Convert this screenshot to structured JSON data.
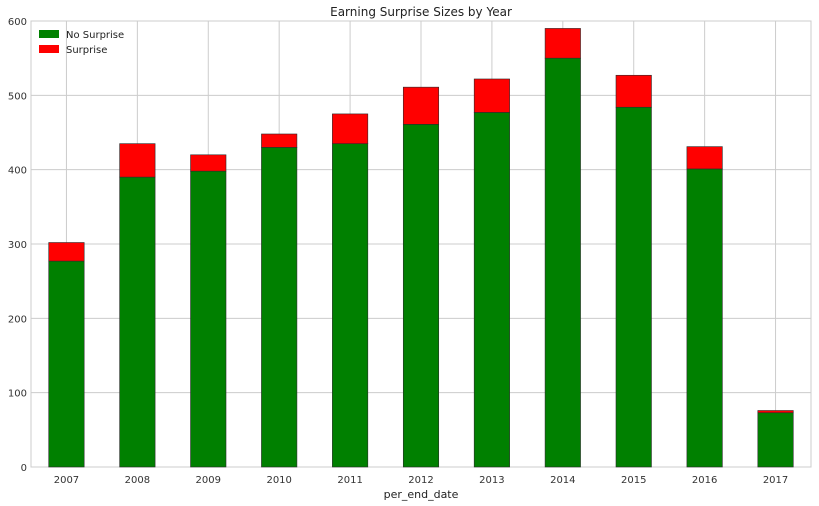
{
  "chart_data": {
    "type": "bar",
    "stacked": true,
    "title": "Earning Surprise Sizes by Year",
    "xlabel": "per_end_date",
    "ylabel": "",
    "ylim": [
      0,
      600
    ],
    "yticks": [
      0,
      100,
      200,
      300,
      400,
      500,
      600
    ],
    "grid": true,
    "legend_position": "top-left",
    "categories": [
      "2007",
      "2008",
      "2009",
      "2010",
      "2011",
      "2012",
      "2013",
      "2014",
      "2015",
      "2016",
      "2017"
    ],
    "series": [
      {
        "name": "No Surprise",
        "color": "#008000",
        "values": [
          277,
          390,
          398,
          430,
          435,
          461,
          477,
          550,
          484,
          401,
          73
        ]
      },
      {
        "name": "Surprise",
        "color": "#ff0000",
        "values": [
          25,
          45,
          22,
          18,
          40,
          50,
          45,
          40,
          43,
          30,
          3
        ]
      }
    ]
  }
}
